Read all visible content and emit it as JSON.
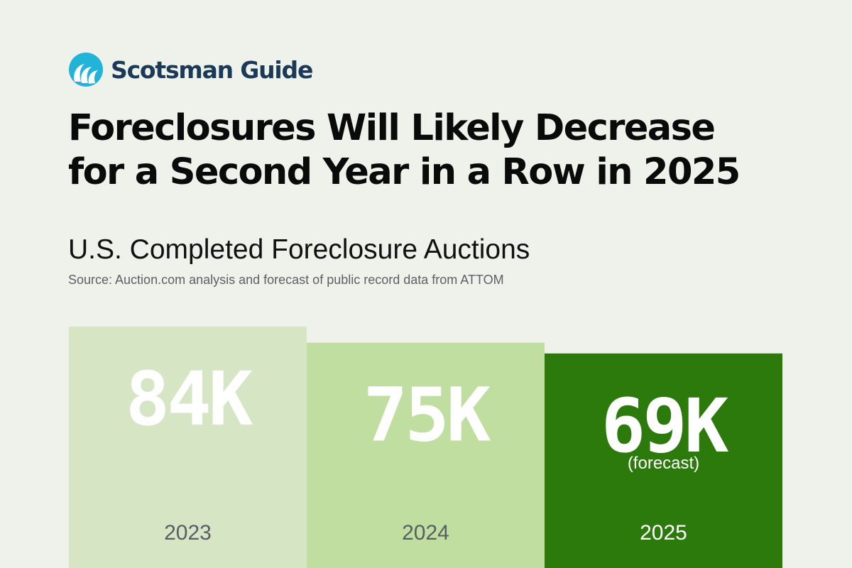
{
  "brand": {
    "name": "Scotsman Guide",
    "logo_icon": "wave-icon",
    "color": "#1b3a57",
    "accent": "#22b3d8"
  },
  "headline": {
    "line1": "Foreclosures Will Likely Decrease",
    "line2": "for a Second Year in a Row in 2025"
  },
  "chart_data": {
    "type": "bar",
    "title": "U.S. Completed Foreclosure Auctions",
    "source": "Source: Auction.com analysis and forecast of public record data from ATTOM",
    "categories": [
      "2023",
      "2024",
      "2025"
    ],
    "values": [
      84000,
      75000,
      69000
    ],
    "value_labels": [
      "84K",
      "75K",
      "69K"
    ],
    "notes": [
      "",
      "",
      "(forecast)"
    ],
    "colors": [
      "#d6e6c5",
      "#c0de9f",
      "#2b7a0b"
    ],
    "category_label_colors": [
      "#575e65",
      "#575e65",
      "#ffffff"
    ],
    "legend": false,
    "grid": false
  }
}
